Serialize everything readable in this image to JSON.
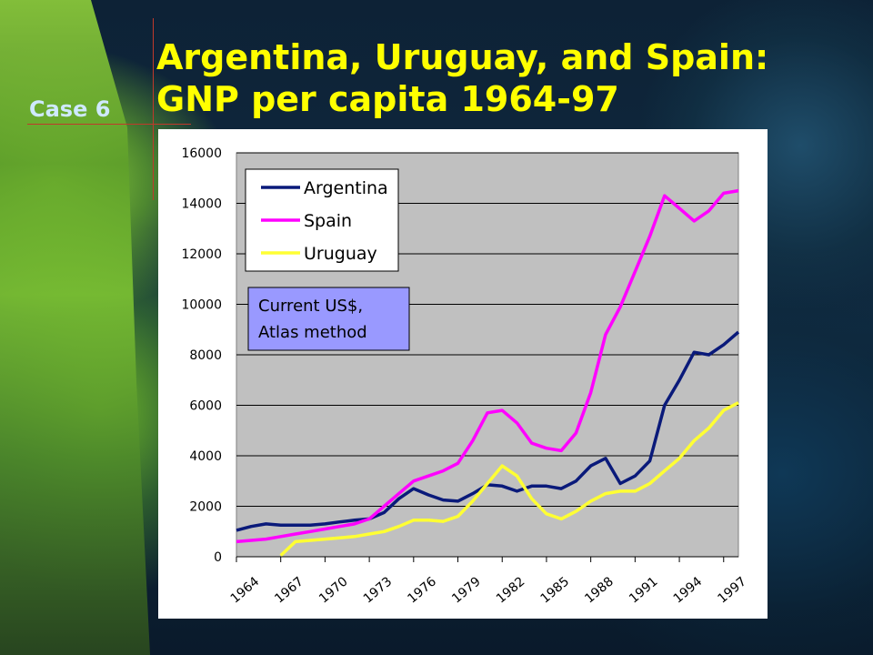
{
  "slide": {
    "title_line1": "Argentina, Uruguay, and Spain:",
    "title_line2": "GNP per capita 1964-97",
    "case_label": "Case 6"
  },
  "colors": {
    "title": "#ffff00",
    "plot_bg": "#c0c0c0",
    "argentina": "#0a1a7a",
    "spain": "#ff00ff",
    "uruguay": "#ffff33",
    "note_bg": "#9999ff"
  },
  "chart_data": {
    "type": "line",
    "title": "",
    "xlabel": "",
    "ylabel": "",
    "x": [
      1964,
      1965,
      1966,
      1967,
      1968,
      1969,
      1970,
      1971,
      1972,
      1973,
      1974,
      1975,
      1976,
      1977,
      1978,
      1979,
      1980,
      1981,
      1982,
      1983,
      1984,
      1985,
      1986,
      1987,
      1988,
      1989,
      1990,
      1991,
      1992,
      1993,
      1994,
      1995,
      1996,
      1997,
      1998
    ],
    "x_tick_labels": [
      "1964",
      "1967",
      "1970",
      "1973",
      "1976",
      "1979",
      "1982",
      "1985",
      "1988",
      "1991",
      "1994",
      "1997"
    ],
    "y_ticks": [
      "0",
      "2000",
      "4000",
      "6000",
      "8000",
      "10000",
      "12000",
      "14000",
      "16000"
    ],
    "ylim": [
      0,
      16000
    ],
    "grid": "horizontal",
    "legend_position": "top-left",
    "series": [
      {
        "name": "Argentina",
        "values": [
          1050,
          1200,
          1300,
          1250,
          1250,
          1250,
          1300,
          1380,
          1450,
          1500,
          1750,
          2300,
          2700,
          2450,
          2250,
          2200,
          2500,
          2850,
          2800,
          2600,
          2800,
          2800,
          2700,
          3000,
          3600,
          3900,
          2900,
          3200,
          3800,
          6000,
          7000,
          8100,
          8000,
          8400,
          8900
        ]
      },
      {
        "name": "Spain",
        "values": [
          600,
          650,
          700,
          800,
          900,
          1000,
          1100,
          1200,
          1300,
          1500,
          2000,
          2500,
          3000,
          3200,
          3400,
          3700,
          4600,
          5700,
          5800,
          5300,
          4500,
          4300,
          4200,
          4900,
          6500,
          8800,
          9900,
          11300,
          12700,
          14300,
          13800,
          13300,
          13700,
          14400,
          14500
        ]
      },
      {
        "name": "Uruguay",
        "values": [
          null,
          null,
          null,
          50,
          600,
          650,
          700,
          750,
          800,
          900,
          1000,
          1200,
          1450,
          1450,
          1400,
          1600,
          2200,
          2900,
          3600,
          3200,
          2300,
          1700,
          1500,
          1800,
          2200,
          2500,
          2600,
          2600,
          2900,
          3400,
          3900,
          4600,
          5100,
          5800,
          6100
        ]
      }
    ],
    "annotation": [
      "Current US$,",
      "Atlas method"
    ]
  }
}
